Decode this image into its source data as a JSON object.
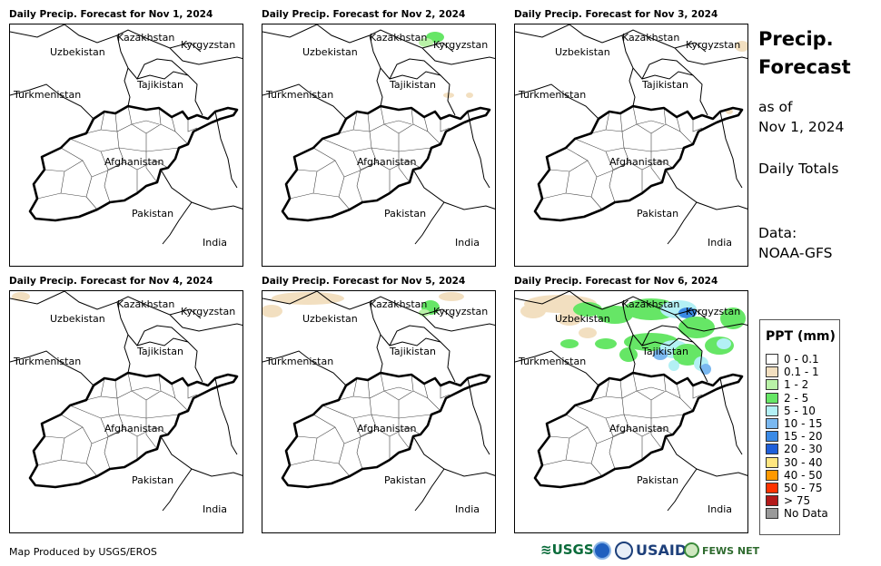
{
  "panels": [
    {
      "title": "Daily Precip. Forecast for Nov 1, 2024",
      "level": 1
    },
    {
      "title": "Daily Precip. Forecast for Nov 2, 2024",
      "level": 1
    },
    {
      "title": "Daily Precip. Forecast for Nov 3, 2024",
      "level": 0
    },
    {
      "title": "Daily Precip. Forecast for Nov 4, 2024",
      "level": 1
    },
    {
      "title": "Daily Precip. Forecast for Nov 5, 2024",
      "level": 3
    },
    {
      "title": "Daily Precip. Forecast for Nov 6, 2024",
      "level": 4
    }
  ],
  "country_labels": {
    "kazakhstan": "Kazakhstan",
    "kyrgyzstan": "Kyrgyzstan",
    "uzbekistan": "Uzbekistan",
    "turkmenistan": "Turkmenistan",
    "tajikistan": "Tajikistan",
    "afghanistan": "Afghanistan",
    "pakistan": "Pakistan",
    "india": "India"
  },
  "side": {
    "title_line1": "Precip.",
    "title_line2": "Forecast",
    "asof_line1": "as of",
    "asof_line2": "Nov 1, 2024",
    "totals": "Daily Totals",
    "data_line1": "Data:",
    "data_line2": "NOAA-GFS"
  },
  "legend": {
    "title": "PPT (mm)",
    "items": [
      {
        "label": "0 - 0.1",
        "color": "#ffffff"
      },
      {
        "label": "0.1 - 1",
        "color": "#f2dfc0"
      },
      {
        "label": "1 - 2",
        "color": "#b9f2a7"
      },
      {
        "label": "2 - 5",
        "color": "#66e666"
      },
      {
        "label": "5 - 10",
        "color": "#b3f0f5"
      },
      {
        "label": "10 - 15",
        "color": "#7ab8f0"
      },
      {
        "label": "15 - 20",
        "color": "#3a8ae6"
      },
      {
        "label": "20 - 30",
        "color": "#1f5fd9"
      },
      {
        "label": "30 - 40",
        "color": "#ffe680"
      },
      {
        "label": "40 - 50",
        "color": "#ff9900"
      },
      {
        "label": "50 - 75",
        "color": "#ff3300"
      },
      {
        "label": "> 75",
        "color": "#b31a1a"
      },
      {
        "label": "No Data",
        "color": "#999999"
      }
    ]
  },
  "footer": {
    "credit": "Map Produced by USGS/EROS",
    "logo_usgs": "USGS",
    "logo_usaid": "USAID",
    "logo_fews": "FEWS NET"
  }
}
